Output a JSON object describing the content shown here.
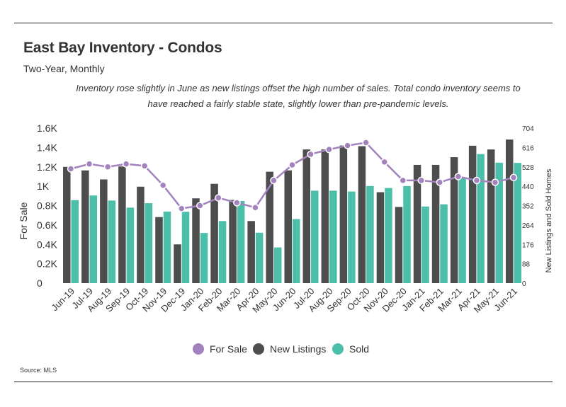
{
  "header": {
    "title": "East Bay Inventory - Condos",
    "subtitle": "Two-Year, Monthly",
    "note_line1": "Inventory rose slightly in June as new listings offset the high number of  sales. Total condo inventory seems to",
    "note_line2": "have reached a fairly stable state, slightly lower than pre-pandemic levels."
  },
  "source": "Source:  MLS",
  "colors": {
    "for_sale": "#a283be",
    "new_listings": "#4d4d4d",
    "sold": "#4cbfaa",
    "line": "#a283be",
    "text": "#333333"
  },
  "chart_data": {
    "type": "bar",
    "title": "East Bay Inventory - Condos",
    "subtitle": "Two-Year, Monthly",
    "categories": [
      "Jun-19",
      "Jul-19",
      "Aug-19",
      "Sep-19",
      "Oct-19",
      "Nov-19",
      "Dec-19",
      "Jan-20",
      "Feb-20",
      "Mar-20",
      "Apr-20",
      "May-20",
      "Jun-20",
      "Jul-20",
      "Aug-20",
      "Sep-20",
      "Oct-20",
      "Nov-20",
      "Dec-20",
      "Jan-21",
      "Feb-21",
      "Mar-21",
      "Apr-21",
      "May-21",
      "Jun-21"
    ],
    "ylabel_left": "For Sale",
    "ylabel_right": "New Listings and Sold Homes",
    "left_ticks": [
      "0",
      "0.2K",
      "0.4K",
      "0.6K",
      "0.8K",
      "1K",
      "1.2K",
      "1.4K",
      "1.6K"
    ],
    "right_ticks": [
      "0",
      "88",
      "176",
      "264",
      "352",
      "440",
      "528",
      "616",
      "704"
    ],
    "ylim_left": [
      0,
      1600
    ],
    "ylim_right": [
      0,
      704
    ],
    "legend_position": "bottom",
    "grid": false,
    "series": [
      {
        "name": "For Sale",
        "kind": "line",
        "axis": "left",
        "values": [
          1180,
          1230,
          1200,
          1230,
          1210,
          1010,
          770,
          800,
          880,
          830,
          780,
          1060,
          1220,
          1330,
          1380,
          1420,
          1450,
          1250,
          1060,
          1060,
          1040,
          1100,
          1060,
          1040,
          1090
        ]
      },
      {
        "name": "New Listings",
        "kind": "bar",
        "axis": "right",
        "values": [
          528,
          512,
          471,
          530,
          438,
          300,
          176,
          385,
          451,
          378,
          282,
          506,
          512,
          607,
          607,
          625,
          622,
          413,
          346,
          537,
          537,
          572,
          624,
          607,
          652
        ]
      },
      {
        "name": "Sold",
        "kind": "bar",
        "axis": "right",
        "values": [
          377,
          398,
          375,
          343,
          363,
          325,
          324,
          228,
          282,
          373,
          229,
          162,
          291,
          420,
          420,
          416,
          441,
          432,
          441,
          348,
          358,
          479,
          586,
          547,
          546
        ]
      }
    ]
  }
}
